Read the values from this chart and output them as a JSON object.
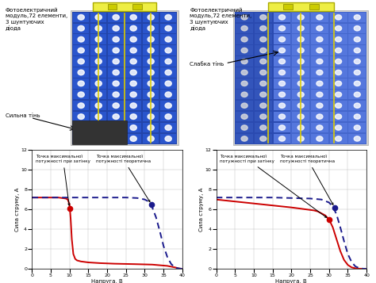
{
  "panel_text_left": "Фотоелектричний\nмодуль,72 елементи,\n3 шунтуючих\nдіода",
  "panel_text_right": "Фотоелектричний\nмодуль,72 елементи,\n3 шунтуючих\nдіода",
  "shade_label_left": "Сильна тінь",
  "shade_label_right": "Слабка тінь",
  "arrow_label_left": "Точка максимальної\nпотужності при затінку",
  "arrow_label_theory_left": "Точка максимальної\nпотужності теоретична",
  "arrow_label_right_1": "Точка максимальної\nпотужності при затінку",
  "arrow_label_theory_right": "Точка максимальної\nпотужності теоретична",
  "xlabel": "Напруга, В",
  "ylabel": "Сила струму, А",
  "ylim": [
    0,
    12
  ],
  "yticks": [
    0,
    2,
    4,
    6,
    8,
    10,
    12
  ],
  "xticks": [
    0,
    5,
    10,
    15,
    20,
    25,
    30,
    35,
    40
  ],
  "red_color": "#cc0000",
  "blue_color": "#1a1a8c",
  "plot1": {
    "red_x": [
      0,
      1,
      2,
      3,
      4,
      5,
      6,
      7,
      8,
      9,
      9.5,
      10,
      10.3,
      10.6,
      11,
      11.5,
      12,
      13,
      15,
      18,
      22,
      27,
      32,
      36,
      38,
      39,
      40
    ],
    "red_y": [
      7.2,
      7.2,
      7.2,
      7.2,
      7.2,
      7.2,
      7.2,
      7.2,
      7.15,
      7.1,
      7.0,
      6.5,
      5.0,
      3.0,
      1.5,
      1.0,
      0.85,
      0.75,
      0.65,
      0.58,
      0.52,
      0.48,
      0.43,
      0.3,
      0.15,
      0.05,
      0.0
    ],
    "blue_x": [
      0,
      5,
      10,
      15,
      20,
      25,
      28,
      30,
      31,
      32,
      33,
      34,
      35,
      36,
      37,
      38,
      39,
      40
    ],
    "blue_y": [
      7.2,
      7.2,
      7.2,
      7.2,
      7.2,
      7.2,
      7.15,
      7.0,
      6.8,
      6.2,
      5.2,
      3.8,
      2.3,
      1.2,
      0.5,
      0.15,
      0.04,
      0.0
    ],
    "red_dot_x": 10.0,
    "red_dot_y": 6.1,
    "blue_dot_x": 31.8,
    "blue_dot_y": 6.5
  },
  "plot2": {
    "red_x": [
      0,
      5,
      10,
      15,
      20,
      24,
      26,
      27,
      28,
      29,
      30,
      31,
      32,
      33,
      34,
      35,
      36,
      37,
      38,
      40
    ],
    "red_y": [
      7.0,
      6.8,
      6.6,
      6.4,
      6.2,
      6.0,
      5.9,
      5.8,
      5.6,
      5.4,
      5.0,
      4.2,
      3.0,
      1.8,
      0.9,
      0.4,
      0.15,
      0.06,
      0.02,
      0.0
    ],
    "blue_x": [
      0,
      5,
      10,
      15,
      20,
      25,
      28,
      30,
      31,
      32,
      33,
      34,
      35,
      36,
      37,
      38,
      39,
      40
    ],
    "blue_y": [
      7.2,
      7.2,
      7.2,
      7.2,
      7.15,
      7.1,
      7.0,
      6.7,
      6.3,
      5.5,
      4.2,
      2.8,
      1.5,
      0.7,
      0.25,
      0.08,
      0.02,
      0.0
    ],
    "red_dot_x": 30.0,
    "red_dot_y": 5.0,
    "blue_dot_x": 31.5,
    "blue_dot_y": 6.2
  }
}
